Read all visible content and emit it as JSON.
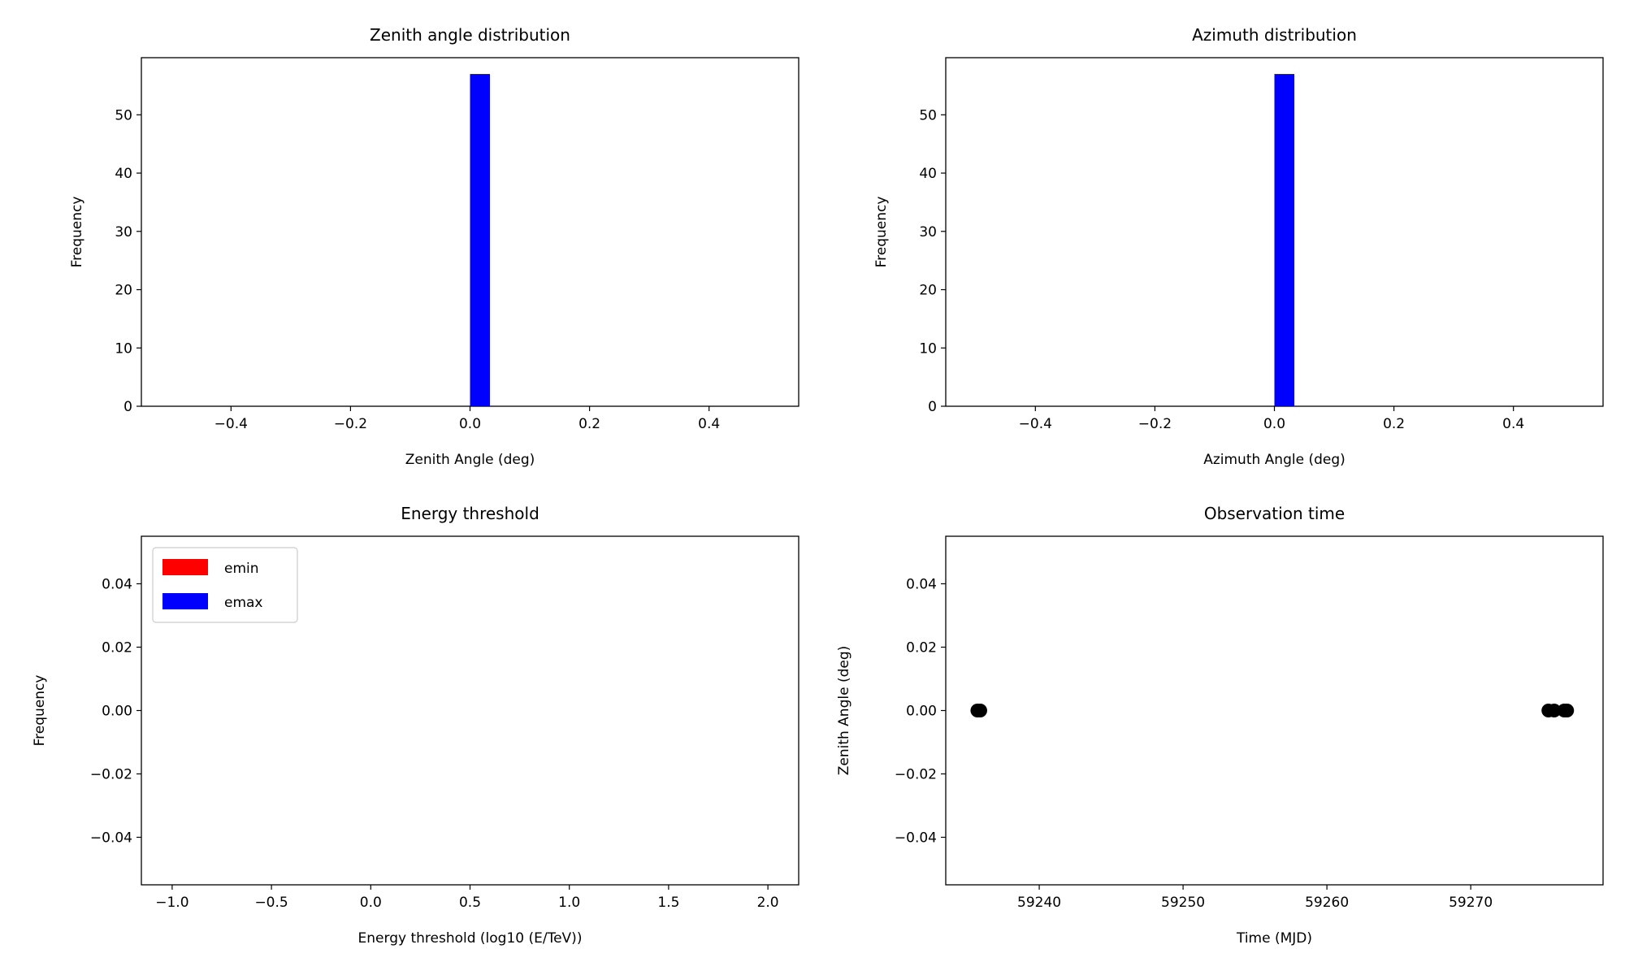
{
  "chart_data": [
    {
      "type": "bar",
      "title": "Zenith angle distribution",
      "xlabel": "Zenith Angle (deg)",
      "ylabel": "Frequency",
      "xlim": [
        -0.55,
        0.55
      ],
      "ylim": [
        0,
        59.8
      ],
      "xticks": [
        -0.4,
        -0.2,
        0.0,
        0.2,
        0.4
      ],
      "xtick_labels": [
        "−0.4",
        "−0.2",
        "0.0",
        "0.2",
        "0.4"
      ],
      "yticks": [
        0,
        10,
        20,
        30,
        40,
        50
      ],
      "ytick_labels": [
        "0",
        "10",
        "20",
        "30",
        "40",
        "50"
      ],
      "bars": [
        {
          "x0": 0.0,
          "x1": 0.0333,
          "height": 57,
          "color": "#0000ff"
        }
      ],
      "grid": false
    },
    {
      "type": "bar",
      "title": "Azimuth distribution",
      "xlabel": "Azimuth Angle (deg)",
      "ylabel": "Frequency",
      "xlim": [
        -0.55,
        0.55
      ],
      "ylim": [
        0,
        59.8
      ],
      "xticks": [
        -0.4,
        -0.2,
        0.0,
        0.2,
        0.4
      ],
      "xtick_labels": [
        "−0.4",
        "−0.2",
        "0.0",
        "0.2",
        "0.4"
      ],
      "yticks": [
        0,
        10,
        20,
        30,
        40,
        50
      ],
      "ytick_labels": [
        "0",
        "10",
        "20",
        "30",
        "40",
        "50"
      ],
      "bars": [
        {
          "x0": 0.0,
          "x1": 0.0333,
          "height": 57,
          "color": "#0000ff"
        }
      ],
      "grid": false
    },
    {
      "type": "bar",
      "title": "Energy threshold",
      "xlabel": "Energy threshold (log10 (E/TeV))",
      "ylabel": "Frequency",
      "xlim": [
        -1.155,
        2.155
      ],
      "ylim": [
        -0.055,
        0.055
      ],
      "xticks": [
        -1.0,
        -0.5,
        0.0,
        0.5,
        1.0,
        1.5,
        2.0
      ],
      "xtick_labels": [
        "−1.0",
        "−0.5",
        "0.0",
        "0.5",
        "1.0",
        "1.5",
        "2.0"
      ],
      "yticks": [
        0.04,
        0.02,
        0.0,
        -0.02,
        -0.04
      ],
      "ytick_labels": [
        "0.04",
        "0.02",
        "0.00",
        "−0.02",
        "−0.04"
      ],
      "bars": [],
      "legend": {
        "placement": "upper-left",
        "entries": [
          {
            "label": "emin",
            "color": "#ff0000"
          },
          {
            "label": "emax",
            "color": "#0000ff"
          }
        ]
      },
      "grid": false
    },
    {
      "type": "scatter",
      "title": "Observation time",
      "xlabel": "Time (MJD)",
      "ylabel": "Zenith Angle (deg)",
      "xlim": [
        59233.5,
        59279.2
      ],
      "ylim": [
        -0.055,
        0.055
      ],
      "xticks": [
        59240,
        59250,
        59260,
        59270
      ],
      "xtick_labels": [
        "59240",
        "59250",
        "59260",
        "59270"
      ],
      "yticks": [
        0.04,
        0.02,
        0.0,
        -0.02,
        -0.04
      ],
      "ytick_labels": [
        "0.04",
        "0.02",
        "0.00",
        "−0.02",
        "−0.04"
      ],
      "points": [
        {
          "x": 59235.7,
          "y": 0.0
        },
        {
          "x": 59235.9,
          "y": 0.0
        },
        {
          "x": 59275.4,
          "y": 0.0
        },
        {
          "x": 59275.8,
          "y": 0.0
        },
        {
          "x": 59276.5,
          "y": 0.0
        },
        {
          "x": 59276.7,
          "y": 0.0
        }
      ],
      "marker_color": "#000000",
      "grid": false
    }
  ]
}
